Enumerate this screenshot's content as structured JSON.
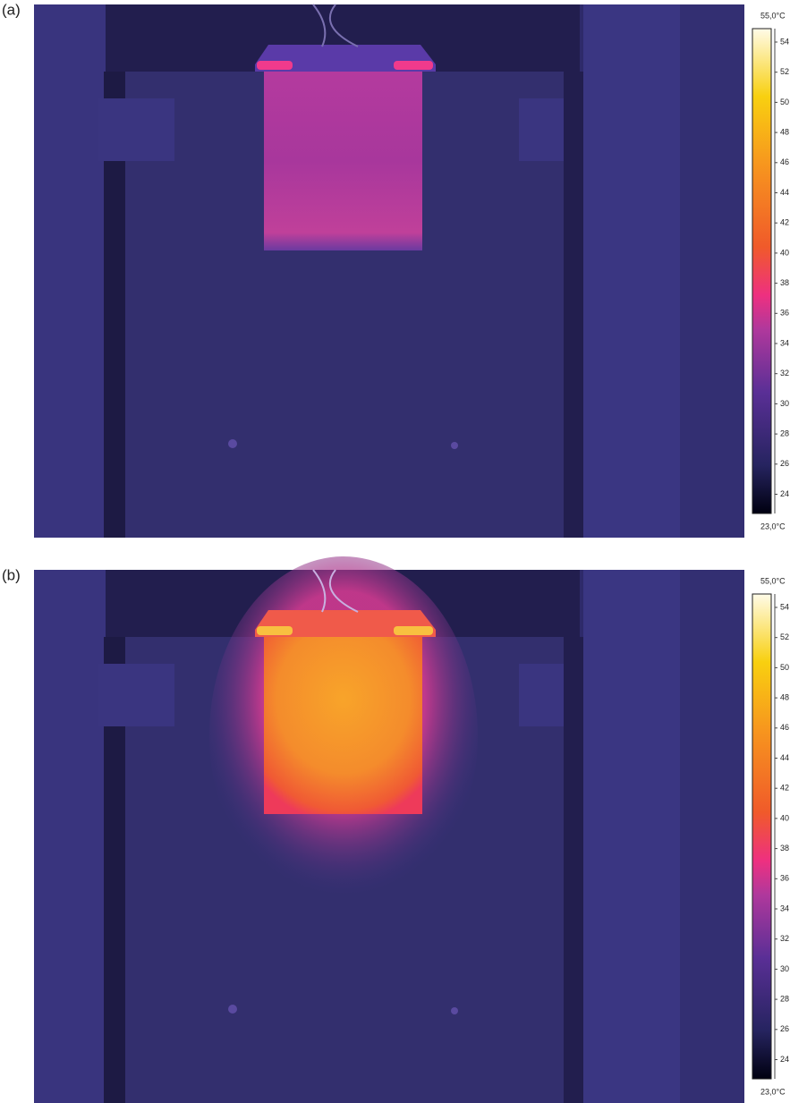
{
  "panels": [
    {
      "label": "(a)",
      "scale_max": "55,0°C",
      "scale_min": "23,0°C",
      "ticks": [
        54,
        52,
        50,
        48,
        46,
        44,
        42,
        40,
        38,
        36,
        34,
        32,
        30,
        28,
        26,
        24
      ]
    },
    {
      "label": "(b)",
      "scale_max": "55,0°C",
      "scale_min": "23,0°C",
      "ticks": [
        54,
        52,
        50,
        48,
        46,
        44,
        42,
        40,
        38,
        36,
        34,
        32,
        30,
        28,
        26,
        24
      ]
    }
  ]
}
